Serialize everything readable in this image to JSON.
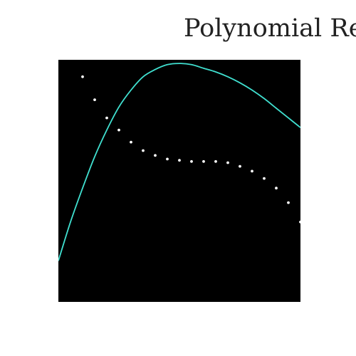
{
  "chart_data": {
    "type": "scatter",
    "title": "Polynomial Regression",
    "xlabel": "",
    "ylabel": "",
    "xlim": [
      0,
      20
    ],
    "ylim": [
      0,
      10
    ],
    "grid": false,
    "legend": "none",
    "background_color": "#000000",
    "series": [
      {
        "type": "scatter",
        "color": "#ffffff",
        "x": [
          2,
          3,
          4,
          5,
          6,
          7,
          8,
          9,
          10,
          11,
          12,
          13,
          14,
          15,
          16,
          17,
          18,
          19,
          20
        ],
        "y": [
          9.3,
          8.35,
          7.6,
          7.1,
          6.6,
          6.25,
          6.05,
          5.9,
          5.85,
          5.8,
          5.8,
          5.8,
          5.75,
          5.6,
          5.4,
          5.1,
          4.7,
          4.1,
          3.3
        ]
      },
      {
        "type": "line",
        "color": "#40e0d0",
        "x": [
          0,
          1,
          2,
          3,
          4,
          5,
          6,
          7,
          8,
          9,
          10,
          11,
          12,
          13,
          14,
          15,
          16,
          17,
          18,
          19,
          20
        ],
        "y": [
          1.7,
          3.3,
          4.7,
          6.0,
          7.1,
          8.05,
          8.75,
          9.3,
          9.6,
          9.8,
          9.85,
          9.8,
          9.65,
          9.5,
          9.3,
          9.05,
          8.75,
          8.4,
          8.0,
          7.6,
          7.2
        ]
      }
    ]
  }
}
